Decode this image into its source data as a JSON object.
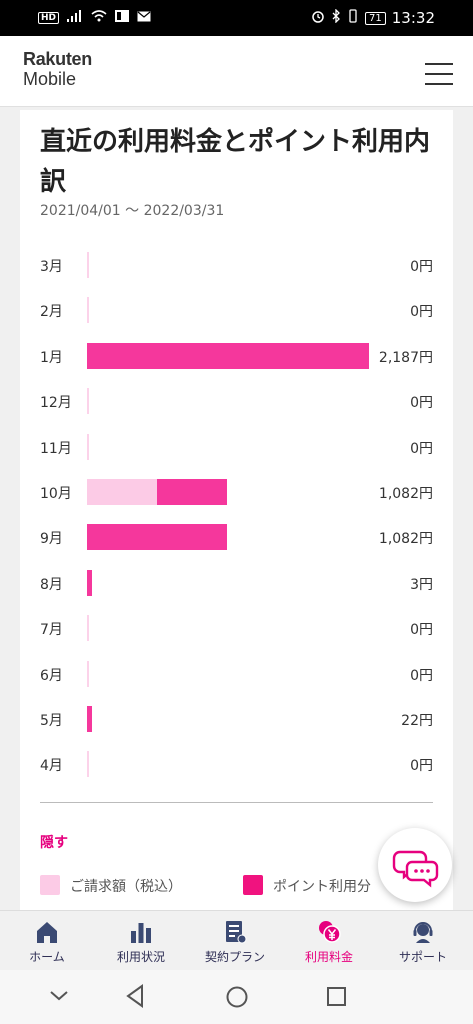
{
  "status_bar": {
    "left_badge": "HD",
    "battery": "71",
    "time": "13:32"
  },
  "header": {
    "logo_line1": "Rakuten",
    "logo_line2": "Mobile",
    "menu_icon": "hamburger-menu-icon"
  },
  "page": {
    "title": "直近の利用料金とポイント利用内訳",
    "period": "2021/04/01 〜 2022/03/31"
  },
  "colors": {
    "billed": "#fccbe6",
    "points": "#f5379c",
    "accent": "#e6007e",
    "nav_text": "#2f2f55"
  },
  "chart_data": {
    "type": "bar",
    "orientation": "horizontal",
    "stacked": true,
    "xlim": [
      0,
      2187
    ],
    "categories": [
      "3月",
      "2月",
      "1月",
      "12月",
      "11月",
      "10月",
      "9月",
      "8月",
      "7月",
      "6月",
      "5月",
      "4月"
    ],
    "totals_labels": [
      "0円",
      "0円",
      "2,187円",
      "0円",
      "0円",
      "1,082円",
      "1,082円",
      "3円",
      "0円",
      "0円",
      "22円",
      "0円"
    ],
    "series": [
      {
        "name": "ご請求額（税込）",
        "values": [
          0,
          0,
          0,
          0,
          0,
          540,
          0,
          0,
          0,
          0,
          0,
          0
        ]
      },
      {
        "name": "ポイント利用分",
        "values": [
          0,
          0,
          2187,
          0,
          0,
          542,
          1082,
          3,
          0,
          0,
          22,
          0
        ]
      }
    ]
  },
  "hide_label": "隠す",
  "legend": {
    "billed": "ご請求額（税込）",
    "points": "ポイント利用分"
  },
  "chat_button_icon": "chat-bubbles-icon",
  "bottom_nav": [
    {
      "label": "ホーム",
      "icon": "home-icon",
      "active": false
    },
    {
      "label": "利用状況",
      "icon": "bar-chart-icon",
      "active": false
    },
    {
      "label": "契約プラン",
      "icon": "contract-document-icon",
      "active": false
    },
    {
      "label": "利用料金",
      "icon": "yen-coin-icon",
      "active": true
    },
    {
      "label": "サポート",
      "icon": "support-headset-icon",
      "active": false
    }
  ]
}
